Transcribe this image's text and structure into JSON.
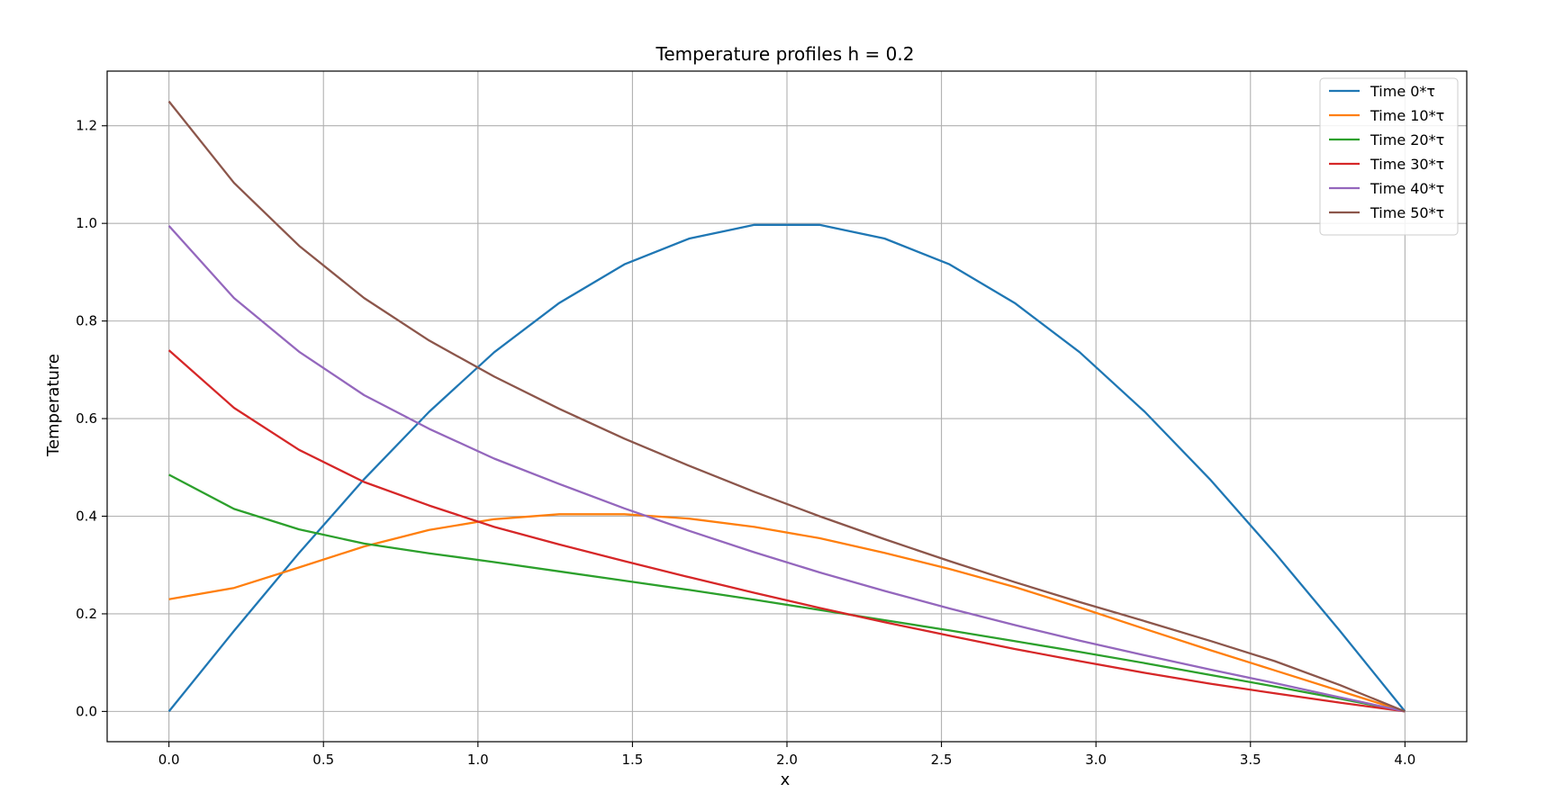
{
  "chart_data": {
    "type": "line",
    "title": "Temperature profiles h = 0.2",
    "xlabel": "x",
    "ylabel": "Temperature",
    "xlim": [
      -0.2,
      4.2
    ],
    "ylim": [
      -0.062,
      1.312
    ],
    "xticks": [
      0.0,
      0.5,
      1.0,
      1.5,
      2.0,
      2.5,
      3.0,
      3.5,
      4.0
    ],
    "xtick_labels": [
      "0.0",
      "0.5",
      "1.0",
      "1.5",
      "2.0",
      "2.5",
      "3.0",
      "3.5",
      "4.0"
    ],
    "yticks": [
      0.0,
      0.2,
      0.4,
      0.6,
      0.8,
      1.0,
      1.2
    ],
    "ytick_labels": [
      "0.0",
      "0.2",
      "0.4",
      "0.6",
      "0.8",
      "1.0",
      "1.2"
    ],
    "grid": true,
    "legend_position": "top-right",
    "x": [
      0.0,
      0.2105,
      0.4211,
      0.6316,
      0.8421,
      1.0526,
      1.2632,
      1.4737,
      1.6842,
      1.8947,
      2.1053,
      2.3158,
      2.5263,
      2.7368,
      2.9474,
      3.1579,
      3.3684,
      3.5789,
      3.7895,
      4.0
    ],
    "series": [
      {
        "name": "Time 0*τ",
        "color": "#1f77b4",
        "values": [
          0.0,
          0.165,
          0.325,
          0.476,
          0.614,
          0.736,
          0.837,
          0.916,
          0.969,
          0.997,
          0.997,
          0.969,
          0.916,
          0.837,
          0.736,
          0.614,
          0.476,
          0.325,
          0.165,
          0.0
        ]
      },
      {
        "name": "Time 10*τ",
        "color": "#ff7f0e",
        "values": [
          0.23,
          0.253,
          0.295,
          0.338,
          0.372,
          0.394,
          0.404,
          0.404,
          0.395,
          0.378,
          0.355,
          0.325,
          0.292,
          0.255,
          0.213,
          0.169,
          0.126,
          0.084,
          0.042,
          0.0
        ]
      },
      {
        "name": "Time 20*τ",
        "color": "#2ca02c",
        "values": [
          0.485,
          0.415,
          0.373,
          0.344,
          0.324,
          0.306,
          0.287,
          0.268,
          0.249,
          0.229,
          0.208,
          0.187,
          0.166,
          0.144,
          0.122,
          0.099,
          0.075,
          0.051,
          0.026,
          0.0
        ]
      },
      {
        "name": "Time 30*τ",
        "color": "#d62728",
        "values": [
          0.74,
          0.622,
          0.536,
          0.47,
          0.422,
          0.378,
          0.342,
          0.308,
          0.275,
          0.243,
          0.212,
          0.183,
          0.155,
          0.128,
          0.103,
          0.079,
          0.057,
          0.037,
          0.018,
          0.0
        ]
      },
      {
        "name": "Time 40*τ",
        "color": "#9467bd",
        "values": [
          0.995,
          0.847,
          0.737,
          0.648,
          0.579,
          0.518,
          0.466,
          0.416,
          0.37,
          0.326,
          0.285,
          0.247,
          0.211,
          0.177,
          0.145,
          0.115,
          0.086,
          0.058,
          0.029,
          0.0
        ]
      },
      {
        "name": "Time 50*τ",
        "color": "#8c564b",
        "values": [
          1.25,
          1.083,
          0.954,
          0.847,
          0.76,
          0.686,
          0.62,
          0.559,
          0.503,
          0.45,
          0.4,
          0.353,
          0.308,
          0.265,
          0.224,
          0.185,
          0.145,
          0.103,
          0.054,
          0.0
        ]
      }
    ]
  }
}
